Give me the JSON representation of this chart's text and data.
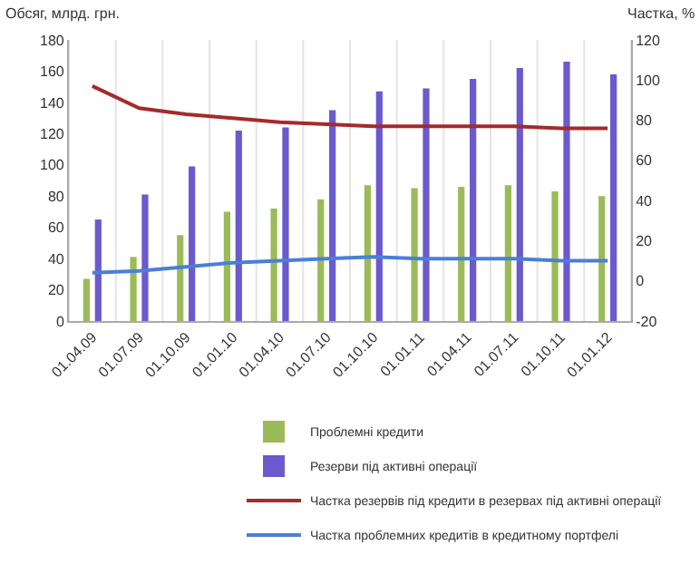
{
  "chart_data": {
    "type": "bar",
    "ylabel": "Обсяг, млрд. грн.",
    "y2label": "Частка, %",
    "categories": [
      "01.04.09",
      "01.07.09",
      "01.10.09",
      "01.01.10",
      "01.04.10",
      "01.07.10",
      "01.10.10",
      "01.01.11",
      "01.04.11",
      "01.07.11",
      "01.10.11",
      "01.01.12"
    ],
    "series": [
      {
        "name": "Проблемні кредити",
        "color": "#9bbb59",
        "values": [
          27,
          41,
          55,
          70,
          72,
          78,
          87,
          85,
          86,
          87,
          83,
          80
        ]
      },
      {
        "name": "Резерви під активні операції",
        "color": "#6a5acd",
        "values": [
          65,
          81,
          99,
          122,
          124,
          135,
          147,
          149,
          155,
          162,
          166,
          158
        ]
      },
      {
        "name": "Частка резервів під кредити в резервах під активні операції",
        "type": "line",
        "axis": "y2",
        "color": "#a52a2a",
        "values": [
          97,
          86,
          83,
          81,
          79,
          78,
          77,
          77,
          77,
          77,
          76,
          76
        ]
      },
      {
        "name": "Частка проблемних кредитів в кредитному портфелі",
        "type": "line",
        "axis": "y2",
        "color": "#4a7fd6",
        "values": [
          4,
          5,
          7,
          9,
          10,
          11,
          12,
          11,
          11,
          11,
          10,
          10
        ]
      }
    ],
    "ylim": [
      0,
      180
    ],
    "yticks": [
      0,
      20,
      40,
      60,
      80,
      100,
      120,
      140,
      160,
      180
    ],
    "y2lim": [
      -20,
      120
    ],
    "y2ticks": [
      -20,
      0,
      20,
      40,
      60,
      80,
      100,
      120
    ],
    "grid": "x",
    "legend": "bottom",
    "marker": "none",
    "line_style": "solid"
  }
}
